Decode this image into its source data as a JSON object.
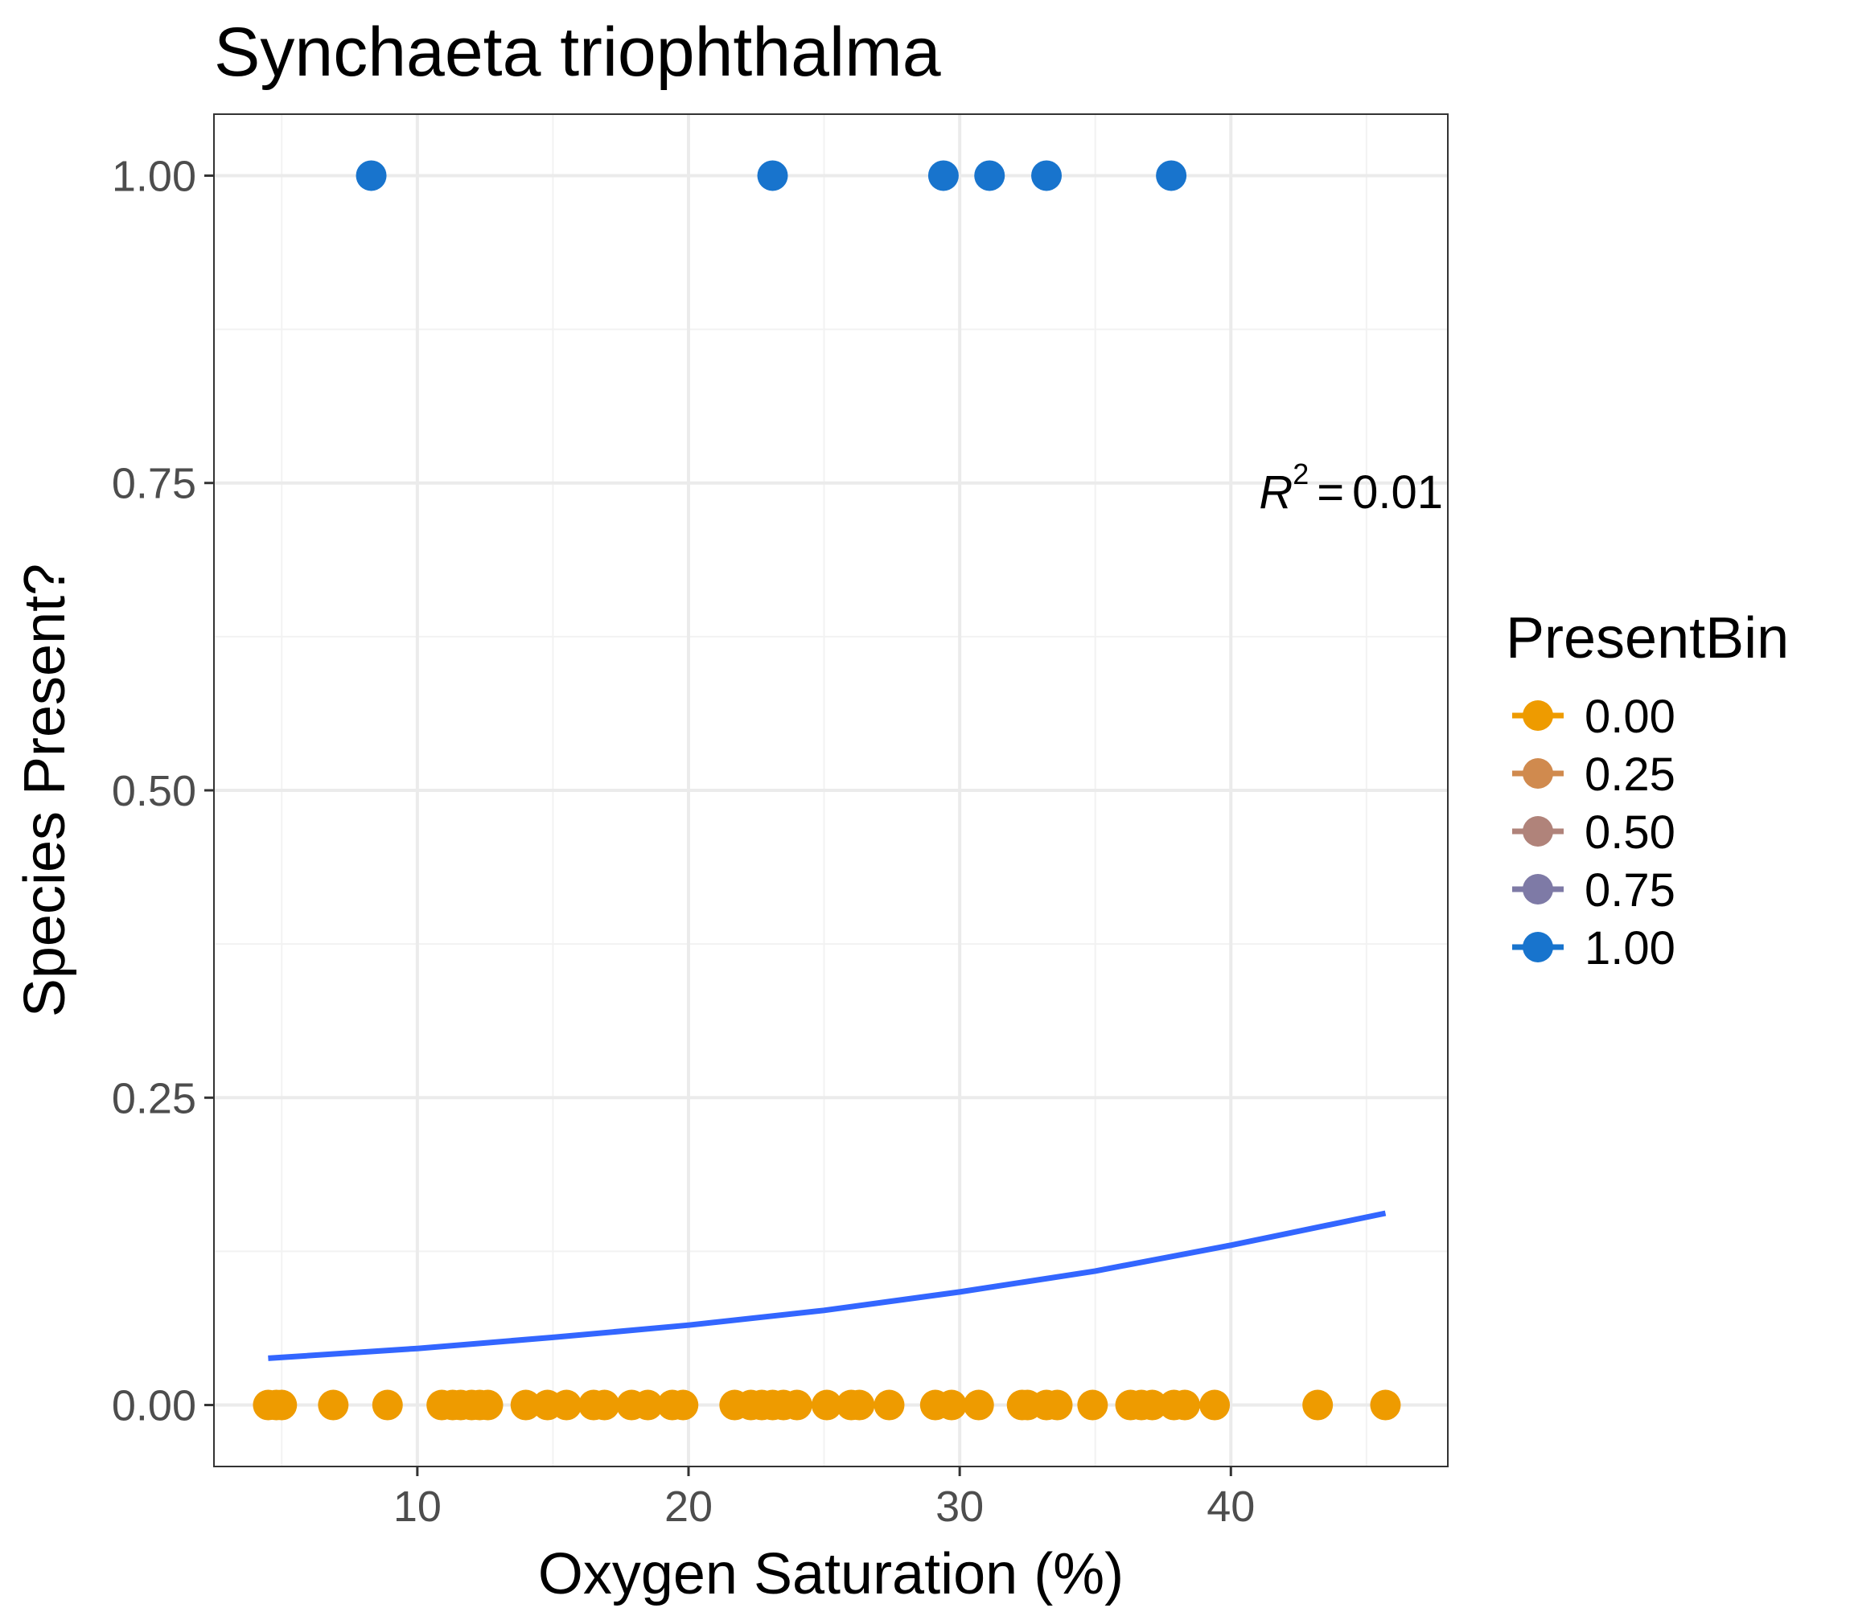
{
  "chart_data": {
    "type": "scatter",
    "title": "Synchaeta triophthalma",
    "xlabel": "Oxygen Saturation (%)",
    "ylabel": "Species Present?",
    "xlim": [
      2.5,
      48.0
    ],
    "ylim": [
      -0.05,
      1.05
    ],
    "x_ticks": [
      10,
      20,
      30,
      40
    ],
    "x_tick_labels": [
      "10",
      "20",
      "30",
      "40"
    ],
    "y_ticks": [
      0,
      0.25,
      0.5,
      0.75,
      1
    ],
    "y_tick_labels": [
      "0.00",
      "0.25",
      "0.50",
      "0.75",
      "1.00"
    ],
    "grid": true,
    "legend": {
      "title": "PresentBin",
      "position": "right",
      "entries": [
        {
          "label": "0.00",
          "color": "#EE9B00"
        },
        {
          "label": "0.25",
          "color": "#D08A4E"
        },
        {
          "label": "0.50",
          "color": "#B0837A"
        },
        {
          "label": "0.75",
          "color": "#7E7AA6"
        },
        {
          "label": "1.00",
          "color": "#1874CD"
        }
      ]
    },
    "annotation": {
      "r_symbol": "R",
      "exponent": "2",
      "equals": "=",
      "value": "0.01"
    },
    "series": [
      {
        "name": "0.00",
        "color": "#EE9B00",
        "y": 0,
        "x": [
          4.5,
          4.8,
          5.0,
          6.9,
          8.9,
          10.9,
          11.3,
          11.6,
          12.0,
          12.3,
          12.6,
          14.0,
          14.8,
          15.5,
          16.5,
          16.9,
          17.9,
          18.5,
          19.4,
          19.8,
          21.7,
          22.3,
          22.7,
          23.1,
          23.5,
          24.0,
          25.1,
          26.0,
          26.3,
          27.4,
          29.1,
          29.7,
          30.7,
          32.3,
          32.5,
          33.2,
          33.6,
          34.9,
          36.3,
          36.7,
          37.1,
          37.9,
          38.3,
          39.4,
          43.2,
          45.7
        ]
      },
      {
        "name": "1.00",
        "color": "#1874CD",
        "y": 1,
        "x": [
          8.3,
          23.1,
          29.4,
          31.1,
          33.2,
          37.8
        ]
      }
    ],
    "fit_line": {
      "color": "#3366FF",
      "x": [
        4.5,
        10,
        15,
        20,
        25,
        30,
        35,
        40,
        45.7
      ],
      "y": [
        0.038,
        0.046,
        0.055,
        0.065,
        0.077,
        0.092,
        0.109,
        0.13,
        0.156
      ]
    }
  }
}
